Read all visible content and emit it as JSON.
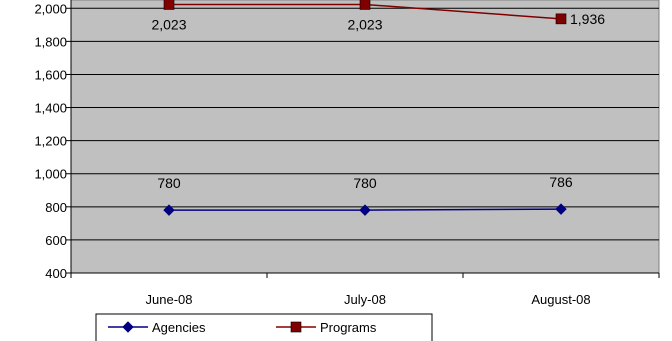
{
  "chart_data": {
    "type": "line",
    "categories": [
      "June-08",
      "July-08",
      "August-08"
    ],
    "series": [
      {
        "name": "Agencies",
        "values": [
          780,
          780,
          786
        ],
        "labels": [
          "780",
          "780",
          "786"
        ],
        "color": "#000080",
        "marker": "diamond"
      },
      {
        "name": "Programs",
        "values": [
          2023,
          2023,
          1936
        ],
        "labels": [
          "2,023",
          "2,023",
          "1,936"
        ],
        "color": "#800000",
        "marker": "square"
      }
    ],
    "ylim": [
      400,
      2050
    ],
    "yticks": [
      400,
      600,
      800,
      1000,
      1200,
      1400,
      1600,
      1800,
      2000
    ],
    "ytick_labels": [
      "400",
      "600",
      "800",
      "1,000",
      "1,200",
      "1,400",
      "1,600",
      "1,800",
      "2,000"
    ],
    "grid": true,
    "plot_background": "#c0c0c0",
    "legend_position": "bottom"
  }
}
